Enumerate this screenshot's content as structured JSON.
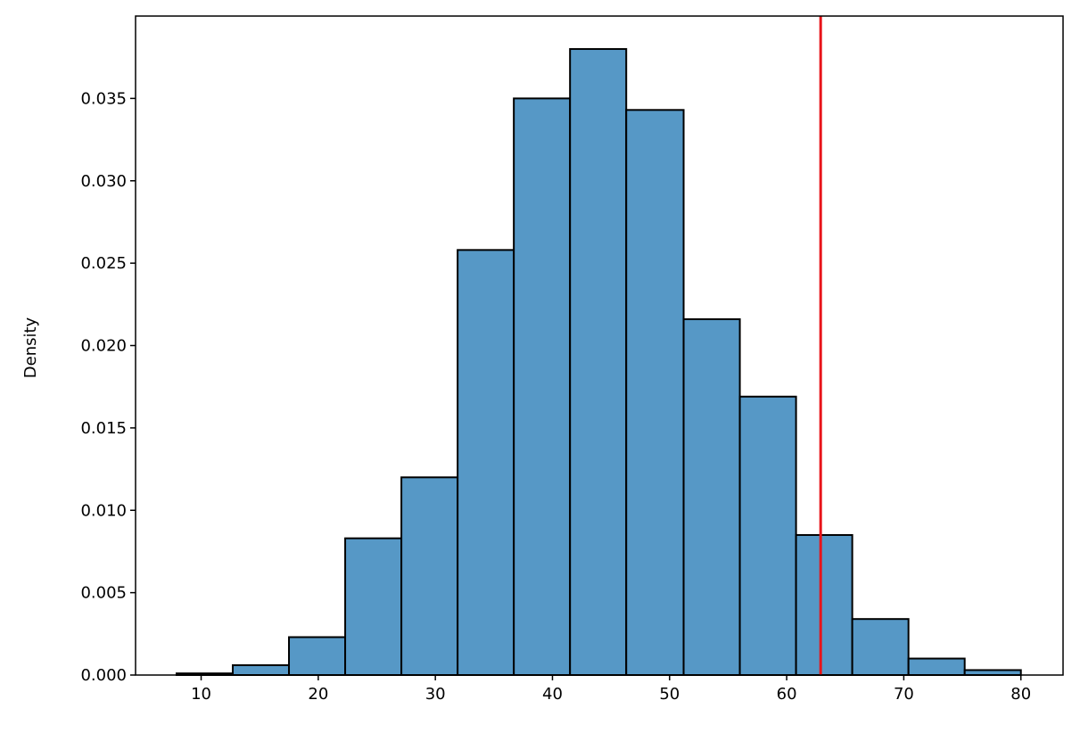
{
  "chart_data": {
    "type": "histogram",
    "ylabel": "Density",
    "bins": [
      7.9,
      12.7,
      17.5,
      22.3,
      27.1,
      31.9,
      36.7,
      41.5,
      46.3,
      51.2,
      56.0,
      60.8,
      65.6,
      70.4,
      75.2,
      80.0
    ],
    "values": [
      0.0001,
      0.0006,
      0.0023,
      0.0083,
      0.012,
      0.0258,
      0.035,
      0.038,
      0.0343,
      0.0216,
      0.0169,
      0.0085,
      0.0034,
      0.001,
      0.0003
    ],
    "color": "#5698c6",
    "edgecolor": "#000000",
    "xlim": [
      4.4,
      83.6
    ],
    "ylim": [
      0,
      0.04
    ],
    "xticks": [
      10,
      20,
      30,
      40,
      50,
      60,
      70,
      80
    ],
    "yticks": [
      {
        "value": 0,
        "label": "0.000"
      },
      {
        "value": 0.005,
        "label": "0.005"
      },
      {
        "value": 0.01,
        "label": "0.010"
      },
      {
        "value": 0.015,
        "label": "0.015"
      },
      {
        "value": 0.02,
        "label": "0.020"
      },
      {
        "value": 0.025,
        "label": "0.025"
      },
      {
        "value": 0.03,
        "label": "0.030"
      },
      {
        "value": 0.035,
        "label": "0.035"
      }
    ],
    "vline": {
      "x": 62.9,
      "color": "#e8141a"
    }
  }
}
